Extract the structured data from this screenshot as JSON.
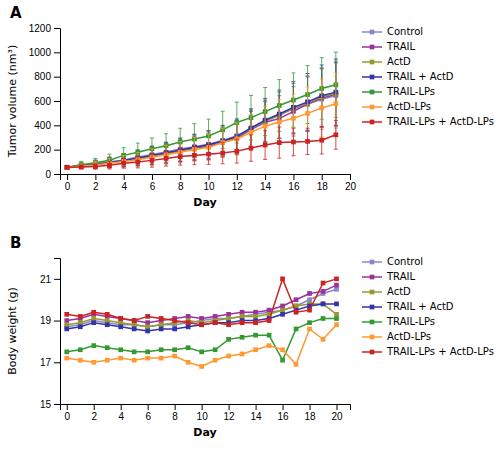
{
  "chart_data": [
    {
      "type": "line",
      "title": "A",
      "x_label": "Day",
      "y_label": "Tumor volume (nm³)",
      "x": [
        0,
        1,
        2,
        3,
        4,
        5,
        6,
        7,
        8,
        9,
        10,
        11,
        12,
        13,
        14,
        15,
        16,
        17,
        18,
        19
      ],
      "xlim": [
        -0.5,
        20
      ],
      "xticks": [
        0,
        2,
        4,
        6,
        8,
        10,
        12,
        14,
        16,
        18,
        20
      ],
      "ylim": [
        0,
        1200
      ],
      "yticks": [
        0,
        200,
        400,
        600,
        800,
        1000,
        1200
      ],
      "grid": false,
      "legend": "right",
      "marker": "square",
      "series": [
        {
          "name": "Control",
          "color": "#8888cc",
          "values": [
            55,
            70,
            85,
            100,
            115,
            140,
            160,
            180,
            205,
            225,
            245,
            275,
            315,
            375,
            435,
            485,
            535,
            575,
            615,
            645
          ],
          "errors": [
            8,
            22,
            32,
            42,
            52,
            62,
            72,
            82,
            92,
            102,
            112,
            122,
            138,
            153,
            173,
            193,
            208,
            228,
            248,
            268
          ]
        },
        {
          "name": "TRAIL",
          "color": "#993399",
          "values": [
            55,
            65,
            78,
            92,
            108,
            128,
            148,
            168,
            188,
            212,
            228,
            258,
            295,
            365,
            425,
            455,
            515,
            575,
            625,
            655
          ],
          "errors": [
            8,
            20,
            30,
            40,
            50,
            60,
            70,
            80,
            90,
            100,
            110,
            120,
            133,
            148,
            168,
            188,
            203,
            223,
            243,
            263
          ]
        },
        {
          "name": "ActD",
          "color": "#999933",
          "values": [
            55,
            68,
            80,
            95,
            110,
            130,
            150,
            170,
            193,
            218,
            238,
            268,
            303,
            373,
            433,
            483,
            543,
            583,
            633,
            663
          ],
          "errors": [
            8,
            21,
            31,
            41,
            51,
            61,
            71,
            81,
            91,
            101,
            111,
            121,
            136,
            150,
            170,
            190,
            205,
            225,
            245,
            265
          ]
        },
        {
          "name": "TRAIL + ActD",
          "color": "#3333aa",
          "values": [
            55,
            67,
            79,
            93,
            112,
            132,
            153,
            175,
            198,
            220,
            240,
            272,
            308,
            378,
            443,
            493,
            548,
            593,
            643,
            673
          ],
          "errors": [
            8,
            21,
            31,
            41,
            53,
            63,
            73,
            85,
            95,
            106,
            116,
            128,
            143,
            158,
            178,
            198,
            213,
            233,
            253,
            273
          ]
        },
        {
          "name": "TRAIL-LPs",
          "color": "#339933",
          "values": [
            55,
            76,
            92,
            113,
            153,
            178,
            208,
            233,
            263,
            288,
            313,
            363,
            423,
            463,
            513,
            563,
            608,
            653,
            703,
            733
          ],
          "errors": [
            8,
            26,
            36,
            50,
            63,
            76,
            88,
            98,
            113,
            126,
            138,
            153,
            168,
            183,
            198,
            213,
            223,
            238,
            253,
            268
          ]
        },
        {
          "name": "ActD-LPs",
          "color": "#ff9933",
          "values": [
            55,
            63,
            75,
            88,
            103,
            118,
            138,
            158,
            178,
            202,
            218,
            258,
            288,
            343,
            393,
            428,
            458,
            498,
            543,
            578
          ],
          "errors": [
            8,
            20,
            30,
            40,
            50,
            58,
            68,
            78,
            88,
            98,
            108,
            118,
            133,
            148,
            163,
            183,
            198,
            218,
            238,
            258
          ]
        },
        {
          "name": "TRAIL-LPs + ActD-LPs",
          "color": "#cc2222",
          "values": [
            55,
            58,
            62,
            72,
            88,
            98,
            112,
            128,
            143,
            153,
            163,
            172,
            188,
            213,
            238,
            258,
            263,
            268,
            278,
            322
          ],
          "errors": [
            8,
            16,
            23,
            31,
            40,
            48,
            56,
            63,
            70,
            76,
            83,
            88,
            98,
            108,
            118,
            128,
            113,
            108,
            113,
            118
          ]
        }
      ]
    },
    {
      "type": "line",
      "title": "B",
      "x_label": "Day",
      "y_label": "Body weight (g)",
      "x": [
        0,
        1,
        2,
        3,
        4,
        5,
        6,
        7,
        8,
        9,
        10,
        11,
        12,
        13,
        14,
        15,
        16,
        17,
        18,
        19,
        20
      ],
      "xlim": [
        -0.5,
        21
      ],
      "xticks": [
        0,
        2,
        4,
        6,
        8,
        10,
        12,
        14,
        16,
        18,
        20
      ],
      "ylim": [
        15,
        22
      ],
      "yticks": [
        15,
        17,
        19,
        21
      ],
      "grid": false,
      "legend": "right",
      "marker": "square",
      "series": [
        {
          "name": "Control",
          "color": "#8888cc",
          "values": [
            18.7,
            18.8,
            19.0,
            18.9,
            18.8,
            18.8,
            18.7,
            18.8,
            18.8,
            18.9,
            19.0,
            19.1,
            19.1,
            19.2,
            19.3,
            19.4,
            19.5,
            19.7,
            20.0,
            20.3,
            20.5
          ]
        },
        {
          "name": "TRAIL",
          "color": "#993399",
          "values": [
            19.0,
            19.1,
            19.3,
            19.2,
            19.1,
            19.0,
            18.9,
            19.0,
            19.1,
            19.2,
            19.1,
            19.2,
            19.3,
            19.4,
            19.4,
            19.5,
            19.7,
            20.0,
            20.3,
            20.4,
            20.7
          ]
        },
        {
          "name": "ActD",
          "color": "#999933",
          "values": [
            18.8,
            18.9,
            19.1,
            19.0,
            18.9,
            18.8,
            18.7,
            18.8,
            18.9,
            19.0,
            18.9,
            19.0,
            19.1,
            19.2,
            19.2,
            19.3,
            19.5,
            19.7,
            19.8,
            19.8,
            19.3
          ]
        },
        {
          "name": "TRAIL + ActD",
          "color": "#3333aa",
          "values": [
            18.6,
            18.7,
            18.9,
            18.8,
            18.7,
            18.6,
            18.5,
            18.6,
            18.6,
            18.7,
            18.8,
            18.9,
            18.9,
            19.0,
            19.0,
            19.1,
            19.3,
            19.5,
            19.7,
            19.8,
            19.8
          ]
        },
        {
          "name": "TRAIL-LPs",
          "color": "#339933",
          "values": [
            17.5,
            17.6,
            17.8,
            17.7,
            17.6,
            17.5,
            17.5,
            17.6,
            17.6,
            17.7,
            17.5,
            17.6,
            18.1,
            18.2,
            18.3,
            18.3,
            17.1,
            18.6,
            18.9,
            19.1,
            19.1
          ]
        },
        {
          "name": "ActD-LPs",
          "color": "#ff9933",
          "values": [
            17.2,
            17.1,
            17.0,
            17.1,
            17.2,
            17.1,
            17.2,
            17.2,
            17.3,
            17.0,
            16.8,
            17.1,
            17.3,
            17.4,
            17.6,
            17.8,
            17.6,
            16.9,
            18.6,
            18.1,
            18.8
          ]
        },
        {
          "name": "TRAIL-LPs + ActD-LPs",
          "color": "#cc2222",
          "values": [
            19.3,
            19.2,
            19.4,
            19.3,
            19.1,
            19.0,
            19.2,
            19.1,
            19.0,
            18.9,
            18.8,
            18.9,
            18.8,
            18.9,
            18.9,
            19.0,
            21.0,
            19.4,
            19.5,
            20.8,
            21.0
          ]
        }
      ]
    }
  ]
}
